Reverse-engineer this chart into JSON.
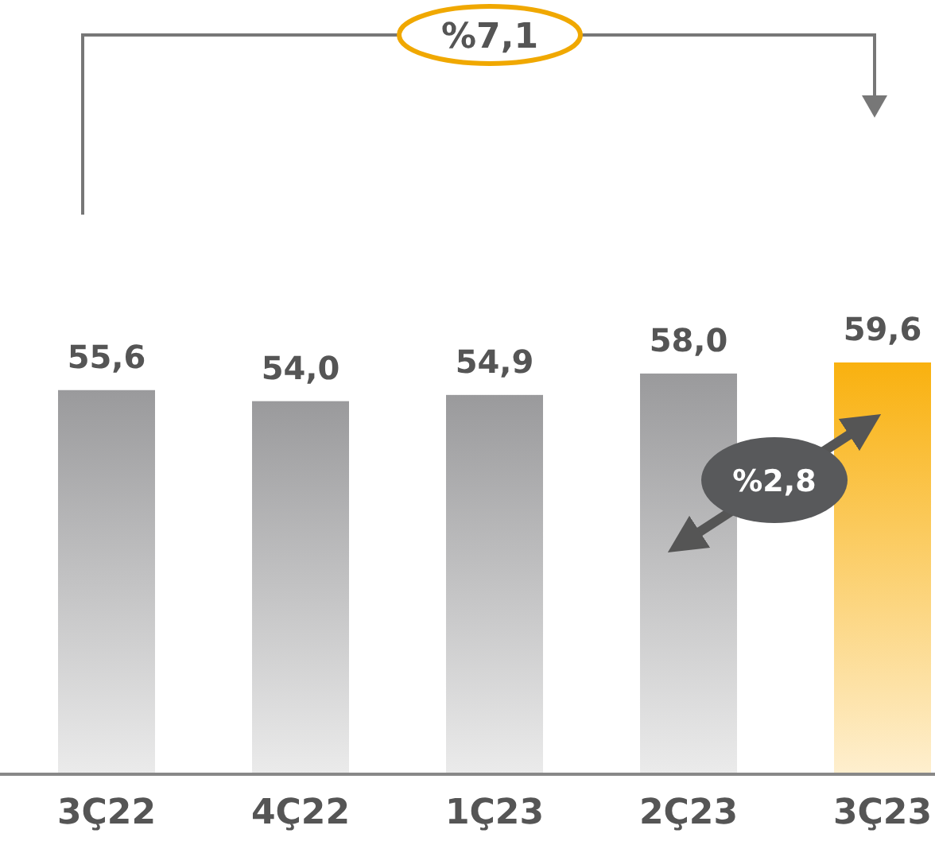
{
  "chart_data": {
    "type": "bar",
    "categories": [
      "3Ç22",
      "4Ç22",
      "1Ç23",
      "2Ç23",
      "3Ç23"
    ],
    "values": [
      55.6,
      54.0,
      54.9,
      58.0,
      59.6
    ],
    "colors": [
      "#9a9a9c",
      "#9a9a9c",
      "#9a9a9c",
      "#9a9a9c",
      "#f9b10f"
    ],
    "data_labels": true,
    "value_labels": [
      "55,6",
      "54,0",
      "54,9",
      "58,0",
      "59,6"
    ],
    "annotations": [
      "%7,1",
      "%2,8"
    ]
  }
}
